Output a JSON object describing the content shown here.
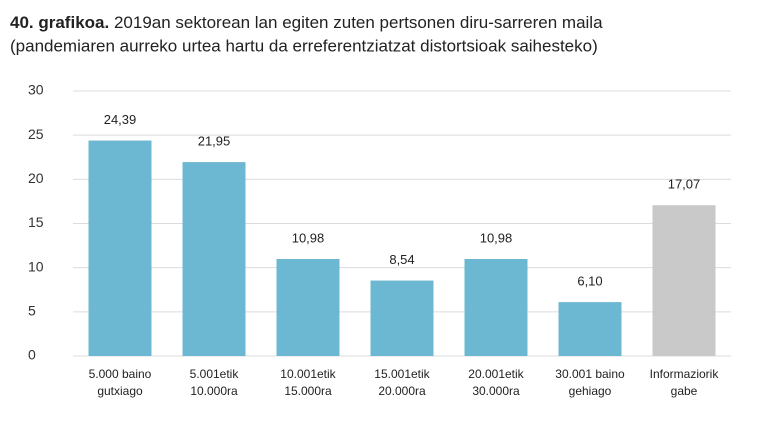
{
  "chart_data": {
    "type": "bar",
    "title_prefix": "40. grafikoa.",
    "title": "2019an sektorean lan egiten zuten pertsonen diru-sarreren maila",
    "subtitle": "(pandemiaren aurreko urtea hartu da erreferentziatzat distortsioak saihesteko)",
    "categories": [
      [
        "5.000 baino",
        "gutxiago"
      ],
      [
        "5.001etik",
        "10.000ra"
      ],
      [
        "10.001etik",
        "15.000ra"
      ],
      [
        "15.001etik",
        "20.000ra"
      ],
      [
        "20.001etik",
        "30.000ra"
      ],
      [
        "30.001 baino",
        "gehiago"
      ],
      [
        "Informaziorik",
        "gabe"
      ]
    ],
    "values": [
      24.39,
      21.95,
      10.98,
      8.54,
      10.98,
      6.1,
      17.07
    ],
    "value_labels": [
      "24,39",
      "21,95",
      "10,98",
      "8,54",
      "10,98",
      "6,10",
      "17,07"
    ],
    "colors": [
      "#6cb7d1",
      "#6cb7d1",
      "#6cb7d1",
      "#6cb7d1",
      "#6cb7d1",
      "#6cb7d1",
      "#c9c9c9"
    ],
    "ylim": [
      0,
      30
    ],
    "yticks": [
      0,
      5,
      10,
      15,
      20,
      25,
      30
    ],
    "grid": true
  }
}
